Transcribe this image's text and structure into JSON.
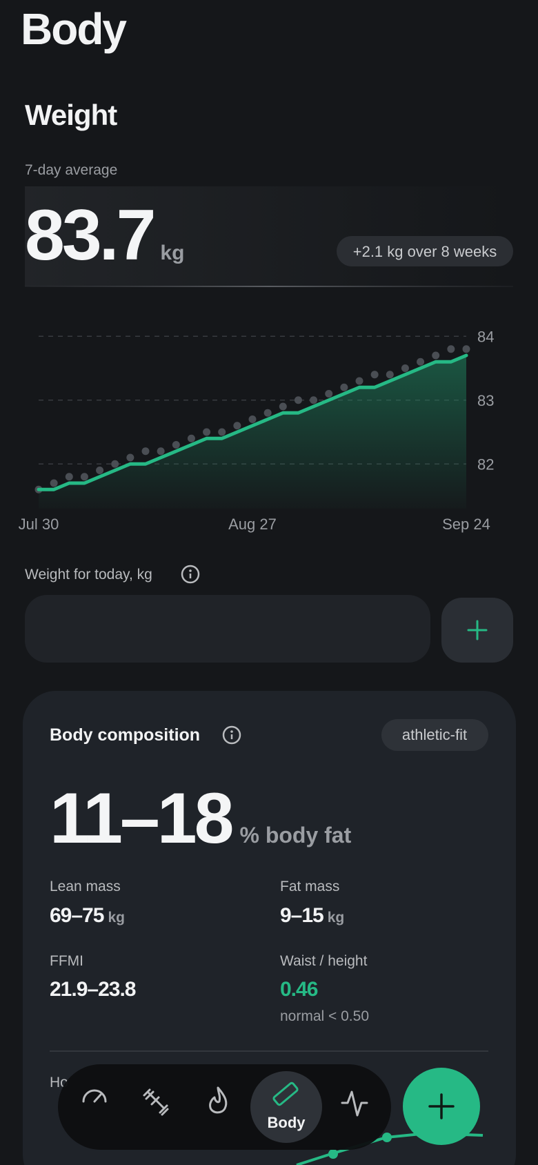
{
  "header": {
    "title": "Body"
  },
  "weight": {
    "title": "Weight",
    "average_label": "7-day average",
    "value": "83.7",
    "unit": "kg",
    "change": "+2.1 kg over 8 weeks"
  },
  "chart_data": {
    "type": "line",
    "categories": [
      "Jul 30",
      null,
      null,
      null,
      null,
      null,
      null,
      null,
      null,
      null,
      null,
      null,
      null,
      null,
      "Aug 27",
      null,
      null,
      null,
      null,
      null,
      null,
      null,
      null,
      null,
      null,
      null,
      null,
      null,
      "Sep 24"
    ],
    "series": [
      {
        "type": "area",
        "color": "#26b985",
        "values": [
          81.6,
          81.6,
          81.7,
          81.7,
          81.8,
          81.9,
          82.0,
          82.0,
          82.1,
          82.2,
          82.3,
          82.4,
          82.4,
          82.5,
          82.6,
          82.7,
          82.8,
          82.8,
          82.9,
          83.0,
          83.1,
          83.2,
          83.2,
          83.3,
          83.4,
          83.5,
          83.6,
          83.6,
          83.7
        ]
      },
      {
        "type": "scatter",
        "color": "#4a4e54",
        "values": [
          81.6,
          81.7,
          81.8,
          81.8,
          81.9,
          82.0,
          82.1,
          82.2,
          82.2,
          82.3,
          82.4,
          82.5,
          82.5,
          82.6,
          82.7,
          82.8,
          82.9,
          83.0,
          83.0,
          83.1,
          83.2,
          83.3,
          83.4,
          83.4,
          83.5,
          83.6,
          83.7,
          83.8,
          83.8
        ]
      }
    ],
    "ylim": [
      81.3,
      84.1
    ],
    "yticks": [
      82,
      83,
      84
    ],
    "grid": true,
    "y_axis_side": "right"
  },
  "today_input": {
    "label": "Weight for today, kg"
  },
  "composition": {
    "title": "Body composition",
    "badge": "athletic-fit",
    "value": "11–18",
    "unit": "% body fat",
    "stats": [
      {
        "label": "Lean mass",
        "value": "69–75",
        "unit": "kg"
      },
      {
        "label": "Fat mass",
        "value": "9–15",
        "unit": "kg"
      },
      {
        "label": "FFMI",
        "value": "21.9–23.8"
      },
      {
        "label": "Waist / height",
        "value": "0.46",
        "note": "normal < 0.50"
      }
    ]
  },
  "next_section": {
    "title": "Ho"
  },
  "nav": {
    "active_label": "Body"
  }
}
